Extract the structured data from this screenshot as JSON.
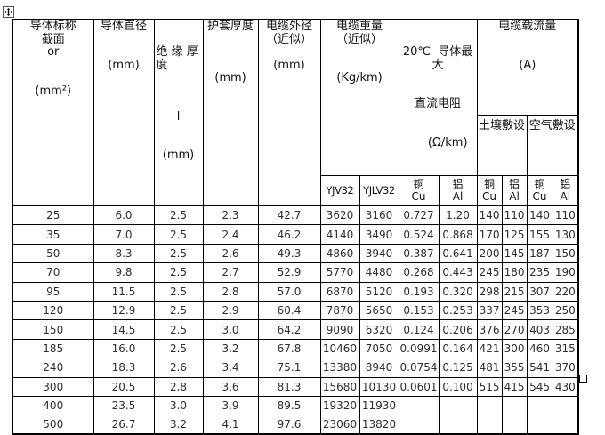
{
  "table": {
    "header": {
      "conductor_section": "导体标称\n截面\nor\n\n\n(mm²)",
      "conductor_diameter": "导体直径\n\n\n(mm)",
      "insulation_top": "绝 缘 厚\n度",
      "insulation_rest": "\nl\n\n\n(mm)",
      "sheath_thickness": "护套厚度\n\n\n\n(mm)",
      "cable_od": "电缆外径\n（近似）\n\n(mm)",
      "cable_weight_group": "电缆重量\n（近似）\n\n\n(Kg/km)",
      "resistance_line1": "20℃  导体最大",
      "resistance_line2": "直流电阻",
      "resistance_line3": "(Ω/km)",
      "ampacity_group": "电缆载流量\n\n\n(A)",
      "soil_laying": "土壤敷设",
      "air_laying": "空气敷设",
      "sub": {
        "yjv32": "YJV32",
        "yjlv32": "YJLV32",
        "cu_res": "铜\nCu",
        "al_res": "铝\nAl",
        "cu_soil": "铜\nCu",
        "al_soil": "铝\nAl",
        "cu_air": "铜\nCu",
        "al_air": "铝\nAl"
      }
    },
    "rows": [
      [
        "25",
        "6.0",
        "2.5",
        "2.3",
        "42.7",
        "3620",
        "3160",
        "0.727",
        "1.20",
        "140",
        "110",
        "140",
        "110"
      ],
      [
        "35",
        "7.0",
        "2.5",
        "2.4",
        "46.2",
        "4140",
        "3490",
        "0.524",
        "0.868",
        "170",
        "125",
        "155",
        "130"
      ],
      [
        "50",
        "8.3",
        "2.5",
        "2.6",
        "49.3",
        "4860",
        "3940",
        "0.387",
        "0.641",
        "200",
        "145",
        "187",
        "150"
      ],
      [
        "70",
        "9.8",
        "2.5",
        "2.7",
        "52.9",
        "5770",
        "4480",
        "0.268",
        "0.443",
        "245",
        "180",
        "235",
        "190"
      ],
      [
        "95",
        "11.5",
        "2.5",
        "2.8",
        "57.0",
        "6870",
        "5120",
        "0.193",
        "0.320",
        "298",
        "215",
        "307",
        "220"
      ],
      [
        "120",
        "12.9",
        "2.5",
        "2.9",
        "60.4",
        "7870",
        "5650",
        "0.153",
        "0.253",
        "337",
        "245",
        "353",
        "250"
      ],
      [
        "150",
        "14.5",
        "2.5",
        "3.0",
        "64.2",
        "9090",
        "6320",
        "0.124",
        "0.206",
        "376",
        "270",
        "403",
        "285"
      ],
      [
        "185",
        "16.0",
        "2.5",
        "3.2",
        "67.8",
        "10460",
        "7050",
        "0.0991",
        "0.164",
        "421",
        "300",
        "460",
        "315"
      ],
      [
        "240",
        "18.3",
        "2.6",
        "3.4",
        "75.1",
        "13380",
        "8940",
        "0.0754",
        "0.125",
        "481",
        "355",
        "541",
        "370"
      ],
      [
        "300",
        "20.5",
        "2.8",
        "3.6",
        "81.3",
        "15680",
        "10130",
        "0.0601",
        "0.100",
        "515",
        "415",
        "545",
        "430"
      ],
      [
        "400",
        "23.5",
        "3.0",
        "3.9",
        "89.5",
        "19320",
        "11930",
        "",
        "",
        "",
        "",
        "",
        ""
      ],
      [
        "500",
        "26.7",
        "3.2",
        "4.1",
        "97.6",
        "23060",
        "13820",
        "",
        "",
        "",
        "",
        "",
        ""
      ]
    ],
    "colors": {
      "border": "#000000",
      "text": "#111111",
      "background": "#ffffff"
    }
  }
}
